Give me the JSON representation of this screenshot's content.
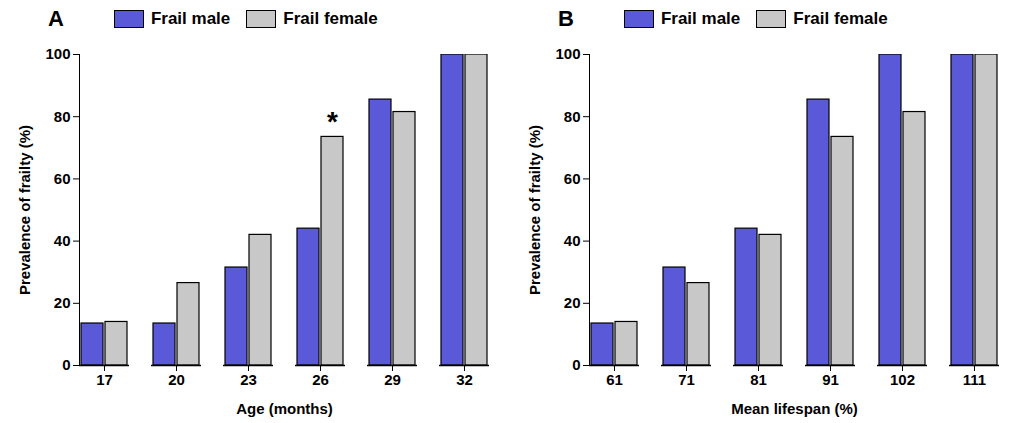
{
  "chart_data": [
    {
      "type": "bar",
      "title": "A",
      "x_label": "Age (months)",
      "y_label": "Prevalence of frailty (%)",
      "categories": [
        "17",
        "20",
        "23",
        "26",
        "29",
        "32"
      ],
      "series": [
        {
          "name": "Frail male",
          "color": "#5a5ad8",
          "values": [
            13.5,
            13.5,
            31.5,
            44,
            85.5,
            100
          ]
        },
        {
          "name": "Frail female",
          "color": "#c8c8c8",
          "values": [
            14,
            26.5,
            42,
            73.5,
            81.5,
            100
          ]
        }
      ],
      "annotations": [
        {
          "category": "26",
          "series": "Frail female",
          "text": "*"
        }
      ],
      "ylim": [
        0,
        100
      ],
      "yticks": [
        0,
        20,
        40,
        60,
        80,
        100
      ],
      "legend": "top"
    },
    {
      "type": "bar",
      "title": "B",
      "x_label": "Mean lifespan (%)",
      "y_label": "Prevalence of frailty (%)",
      "categories": [
        "61",
        "71",
        "81",
        "91",
        "102",
        "111"
      ],
      "series": [
        {
          "name": "Frail male",
          "color": "#5a5ad8",
          "values": [
            13.5,
            31.5,
            44,
            85.5,
            100,
            100
          ]
        },
        {
          "name": "Frail female",
          "color": "#c8c8c8",
          "values": [
            14,
            26.5,
            42,
            73.5,
            81.5,
            100
          ]
        }
      ],
      "ylim": [
        0,
        100
      ],
      "yticks": [
        0,
        20,
        40,
        60,
        80,
        100
      ],
      "legend": "top"
    }
  ]
}
